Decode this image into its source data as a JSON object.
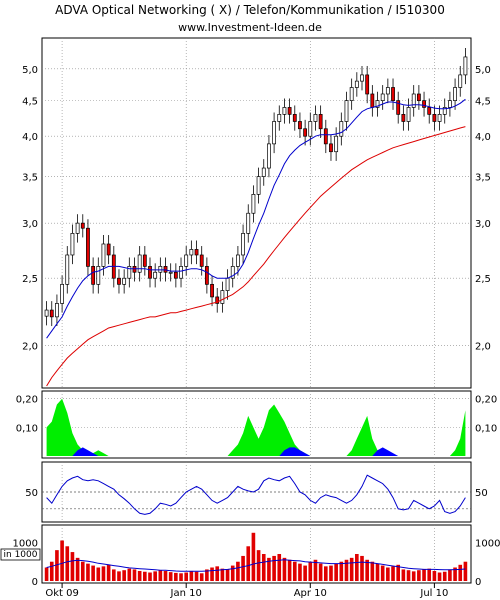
{
  "header": {
    "title": "ADVA Optical Networking  ( X)    / Telefon/Kommunikation / I510300",
    "url": "www.Investment-Ideen.de"
  },
  "colors": {
    "up_candle": "#ffffff",
    "down_candle": "#e00000",
    "short_ma": "#0000cc",
    "long_ma": "#dd0000",
    "indicator_green": "#00ee00",
    "indicator_blue": "#0000ff",
    "indicator_red": "#ff0000",
    "rsi_line": "#0000cc",
    "volume_bar": "#e00000",
    "volume_ma": "#0000cc"
  },
  "chart_data": [
    {
      "type": "candlestick",
      "panel": "price",
      "y_scale": "log",
      "ylim": [
        1.75,
        5.5
      ],
      "y_ticks": [
        "2,0",
        "2,5",
        "3,0",
        "3,5",
        "4,0",
        "4,5",
        "5,0"
      ],
      "x_ticks": [
        "Okt 09",
        "Jan 10",
        "Apr 10",
        "Jul 10"
      ],
      "grid": true,
      "series": [
        {
          "name": "",
          "kind": "close",
          "values": [
            2.25,
            2.2,
            2.3,
            2.45,
            2.7,
            2.9,
            3.0,
            2.95,
            2.6,
            2.45,
            2.6,
            2.8,
            2.7,
            2.5,
            2.45,
            2.5,
            2.6,
            2.55,
            2.7,
            2.6,
            2.5,
            2.55,
            2.6,
            2.55,
            2.55,
            2.5,
            2.6,
            2.7,
            2.75,
            2.7,
            2.6,
            2.45,
            2.35,
            2.3,
            2.4,
            2.5,
            2.6,
            2.7,
            2.9,
            3.1,
            3.3,
            3.5,
            3.6,
            3.9,
            4.2,
            4.3,
            4.4,
            4.3,
            4.2,
            4.1,
            4.0,
            4.2,
            4.3,
            4.1,
            3.9,
            3.8,
            4.0,
            4.2,
            4.5,
            4.7,
            4.8,
            4.9,
            4.6,
            4.4,
            4.5,
            4.6,
            4.7,
            4.5,
            4.3,
            4.2,
            4.4,
            4.6,
            4.5,
            4.4,
            4.3,
            4.2,
            4.3,
            4.4,
            4.5,
            4.7,
            4.9,
            5.2
          ]
        },
        {
          "name": "",
          "kind": "ma_short",
          "values": [
            2.05,
            2.1,
            2.15,
            2.2,
            2.28,
            2.35,
            2.42,
            2.48,
            2.52,
            2.55,
            2.56,
            2.58,
            2.6,
            2.6,
            2.6,
            2.59,
            2.58,
            2.58,
            2.58,
            2.58,
            2.57,
            2.57,
            2.57,
            2.57,
            2.56,
            2.56,
            2.56,
            2.57,
            2.58,
            2.58,
            2.57,
            2.55,
            2.52,
            2.5,
            2.5,
            2.5,
            2.52,
            2.55,
            2.62,
            2.72,
            2.85,
            2.98,
            3.1,
            3.25,
            3.4,
            3.52,
            3.65,
            3.75,
            3.82,
            3.88,
            3.92,
            3.96,
            4.0,
            4.02,
            4.02,
            4.02,
            4.03,
            4.05,
            4.1,
            4.18,
            4.26,
            4.34,
            4.38,
            4.4,
            4.42,
            4.45,
            4.48,
            4.48,
            4.46,
            4.44,
            4.43,
            4.44,
            4.44,
            4.43,
            4.41,
            4.39,
            4.38,
            4.38,
            4.39,
            4.42,
            4.46,
            4.52
          ]
        },
        {
          "name": "",
          "kind": "ma_long",
          "values": [
            1.75,
            1.8,
            1.84,
            1.88,
            1.92,
            1.95,
            1.98,
            2.01,
            2.04,
            2.06,
            2.08,
            2.1,
            2.12,
            2.13,
            2.14,
            2.15,
            2.16,
            2.17,
            2.18,
            2.19,
            2.2,
            2.2,
            2.21,
            2.22,
            2.23,
            2.23,
            2.24,
            2.25,
            2.26,
            2.27,
            2.28,
            2.29,
            2.3,
            2.31,
            2.33,
            2.35,
            2.37,
            2.4,
            2.43,
            2.47,
            2.52,
            2.57,
            2.62,
            2.68,
            2.74,
            2.8,
            2.86,
            2.92,
            2.98,
            3.04,
            3.1,
            3.16,
            3.22,
            3.28,
            3.33,
            3.38,
            3.43,
            3.48,
            3.53,
            3.58,
            3.62,
            3.66,
            3.7,
            3.73,
            3.76,
            3.79,
            3.82,
            3.85,
            3.87,
            3.89,
            3.91,
            3.93,
            3.95,
            3.97,
            3.99,
            4.01,
            4.03,
            4.05,
            4.07,
            4.09,
            4.11,
            4.13
          ]
        }
      ]
    },
    {
      "type": "area",
      "panel": "indicator",
      "ylim": [
        0,
        0.22
      ],
      "y_ticks": [
        "0,10",
        "0,20"
      ],
      "grid": true,
      "series": [
        {
          "name": "",
          "color_key": "indicator_green",
          "values": [
            0.1,
            0.12,
            0.18,
            0.2,
            0.15,
            0.08,
            0.04,
            0.02,
            0.01,
            0.01,
            0.02,
            0.01,
            0.0,
            0.0,
            0.0,
            0.0,
            0.0,
            0.0,
            0.0,
            0.0,
            0.0,
            0.0,
            0.0,
            0.0,
            0.0,
            0.0,
            0.0,
            0.0,
            0.0,
            0.0,
            0.0,
            0.0,
            0.0,
            0.0,
            0.0,
            0.0,
            0.02,
            0.04,
            0.08,
            0.14,
            0.1,
            0.06,
            0.1,
            0.16,
            0.18,
            0.15,
            0.12,
            0.08,
            0.04,
            0.02,
            0.01,
            0.0,
            0.0,
            0.0,
            0.0,
            0.0,
            0.0,
            0.0,
            0.0,
            0.02,
            0.06,
            0.1,
            0.14,
            0.06,
            0.02,
            0.01,
            0.0,
            0.0,
            0.0,
            0.0,
            0.0,
            0.0,
            0.0,
            0.0,
            0.0,
            0.0,
            0.0,
            0.0,
            0.0,
            0.02,
            0.06,
            0.16
          ]
        },
        {
          "name": "",
          "color_key": "indicator_blue",
          "values": [
            0.0,
            0.0,
            0.0,
            0.0,
            0.0,
            0.0,
            0.02,
            0.03,
            0.02,
            0.01,
            0.0,
            0.0,
            0.0,
            0.0,
            0.0,
            0.0,
            0.0,
            0.0,
            0.0,
            0.0,
            0.0,
            0.0,
            0.0,
            0.0,
            0.0,
            0.0,
            0.0,
            0.0,
            0.0,
            0.0,
            0.0,
            0.0,
            0.0,
            0.0,
            0.0,
            0.0,
            0.0,
            0.0,
            0.0,
            0.0,
            0.0,
            0.0,
            0.0,
            0.0,
            0.0,
            0.0,
            0.02,
            0.03,
            0.03,
            0.02,
            0.01,
            0.0,
            0.0,
            0.0,
            0.0,
            0.0,
            0.0,
            0.0,
            0.0,
            0.0,
            0.0,
            0.0,
            0.0,
            0.0,
            0.02,
            0.03,
            0.02,
            0.01,
            0.0,
            0.0,
            0.0,
            0.0,
            0.0,
            0.0,
            0.0,
            0.0,
            0.0,
            0.0,
            0.0,
            0.0,
            0.0,
            0.0
          ]
        }
      ]
    },
    {
      "type": "line",
      "panel": "oscillator",
      "ylim": [
        0,
        100
      ],
      "y_ticks": [
        "50"
      ],
      "reference_lines": [
        20,
        50
      ],
      "series": [
        {
          "name": "",
          "values": [
            40,
            30,
            45,
            60,
            70,
            75,
            78,
            72,
            70,
            72,
            70,
            65,
            60,
            55,
            45,
            38,
            30,
            20,
            12,
            10,
            12,
            20,
            30,
            28,
            25,
            30,
            40,
            50,
            55,
            60,
            55,
            45,
            35,
            30,
            35,
            40,
            50,
            60,
            55,
            52,
            50,
            55,
            70,
            75,
            72,
            70,
            75,
            78,
            65,
            50,
            45,
            35,
            30,
            40,
            45,
            42,
            40,
            35,
            30,
            35,
            45,
            60,
            80,
            75,
            70,
            65,
            55,
            40,
            20,
            18,
            20,
            35,
            30,
            25,
            20,
            25,
            35,
            15,
            12,
            15,
            25,
            40
          ]
        }
      ]
    },
    {
      "type": "bar",
      "panel": "volume",
      "ylim": [
        0,
        1400
      ],
      "y_ticks": [
        "0",
        "1000"
      ],
      "y_unit_label": "in 1000",
      "series": [
        {
          "name": "",
          "kind": "volume",
          "values": [
            350,
            500,
            800,
            1050,
            900,
            750,
            600,
            500,
            450,
            400,
            350,
            380,
            420,
            300,
            250,
            280,
            320,
            300,
            260,
            240,
            220,
            250,
            280,
            260,
            230,
            210,
            200,
            220,
            260,
            240,
            200,
            300,
            350,
            380,
            320,
            300,
            400,
            500,
            650,
            900,
            1250,
            800,
            700,
            600,
            650,
            700,
            600,
            550,
            500,
            450,
            400,
            500,
            550,
            450,
            380,
            400,
            450,
            500,
            550,
            600,
            700,
            650,
            550,
            500,
            450,
            400,
            350,
            380,
            420,
            300,
            280,
            250,
            280,
            300,
            320,
            260,
            220,
            240,
            300,
            350,
            420,
            500
          ]
        },
        {
          "name": "",
          "kind": "volume_ma",
          "values": [
            350,
            380,
            420,
            460,
            500,
            520,
            540,
            530,
            510,
            490,
            460,
            440,
            420,
            400,
            380,
            360,
            340,
            330,
            320,
            310,
            300,
            290,
            280,
            280,
            270,
            260,
            255,
            255,
            255,
            255,
            255,
            260,
            270,
            280,
            290,
            300,
            320,
            340,
            370,
            400,
            440,
            470,
            490,
            510,
            530,
            540,
            550,
            540,
            530,
            520,
            500,
            490,
            480,
            470,
            460,
            450,
            450,
            450,
            460,
            470,
            480,
            490,
            480,
            470,
            450,
            430,
            410,
            390,
            370,
            350,
            330,
            320,
            310,
            300,
            300,
            300,
            295,
            290,
            290,
            295,
            300,
            310
          ]
        }
      ]
    }
  ]
}
